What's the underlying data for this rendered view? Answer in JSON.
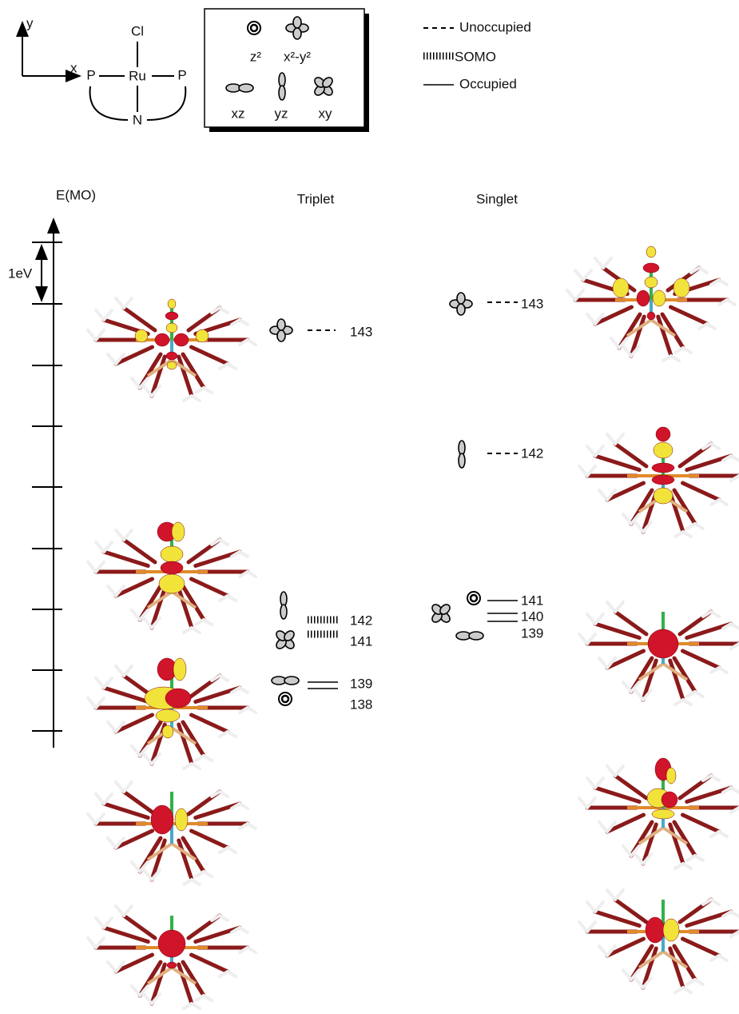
{
  "coordinate_system": {
    "y_axis": "y",
    "x_axis": "x"
  },
  "complex": {
    "top": "Cl",
    "center": "Ru",
    "left": "P",
    "right": "P",
    "bottom": "N"
  },
  "orbital_key": [
    "z²",
    "x²-y²",
    "xz",
    "yz",
    "xy"
  ],
  "line_key": {
    "unoccupied": "Unoccupied",
    "somo": "SOMO",
    "occupied": "Occupied"
  },
  "energy_axis": {
    "label": "E(MO)",
    "scale": "1eV"
  },
  "columns": {
    "triplet": {
      "title": "Triplet",
      "levels": [
        "143",
        "142",
        "141",
        "139",
        "138"
      ]
    },
    "singlet": {
      "title": "Singlet",
      "levels": [
        "143",
        "142",
        "141",
        "140",
        "139"
      ]
    }
  }
}
